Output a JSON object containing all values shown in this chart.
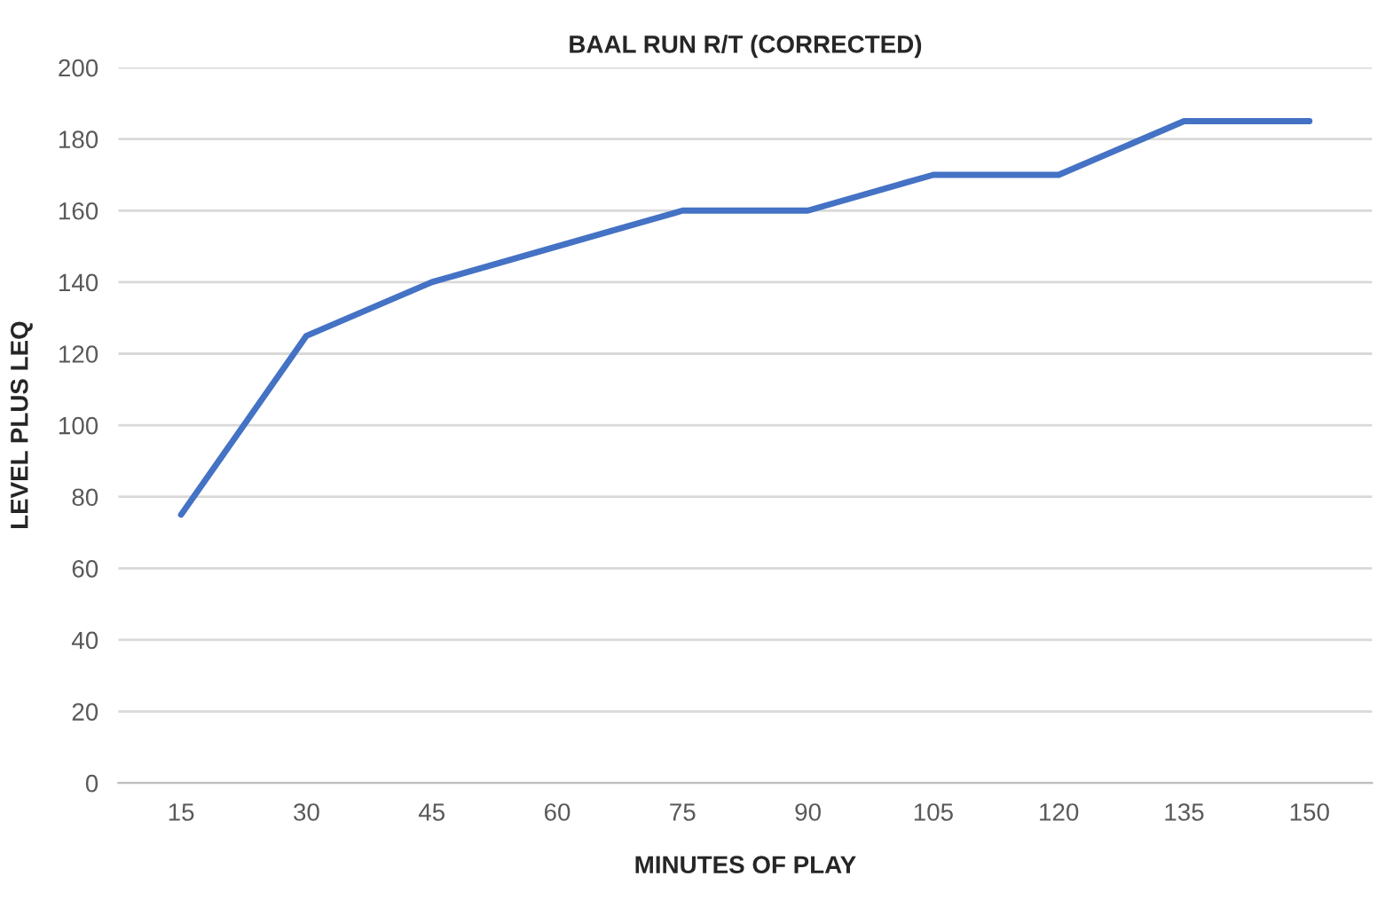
{
  "chart_data": {
    "type": "line",
    "title": "BAAL RUN R/T (CORRECTED)",
    "xlabel": "MINUTES OF PLAY",
    "ylabel": "LEVEL PLUS LEQ",
    "categories": [
      "15",
      "30",
      "45",
      "60",
      "75",
      "90",
      "105",
      "120",
      "135",
      "150"
    ],
    "series": [
      {
        "color": "#4472c4",
        "values": [
          75,
          125,
          140,
          150,
          160,
          160,
          170,
          170,
          185,
          185
        ]
      }
    ],
    "ylim": [
      0,
      200
    ],
    "yticks": [
      0,
      20,
      40,
      60,
      80,
      100,
      120,
      140,
      160,
      180,
      200
    ],
    "grid": "y",
    "legend": false,
    "marker": "none",
    "line_style": "solid"
  }
}
